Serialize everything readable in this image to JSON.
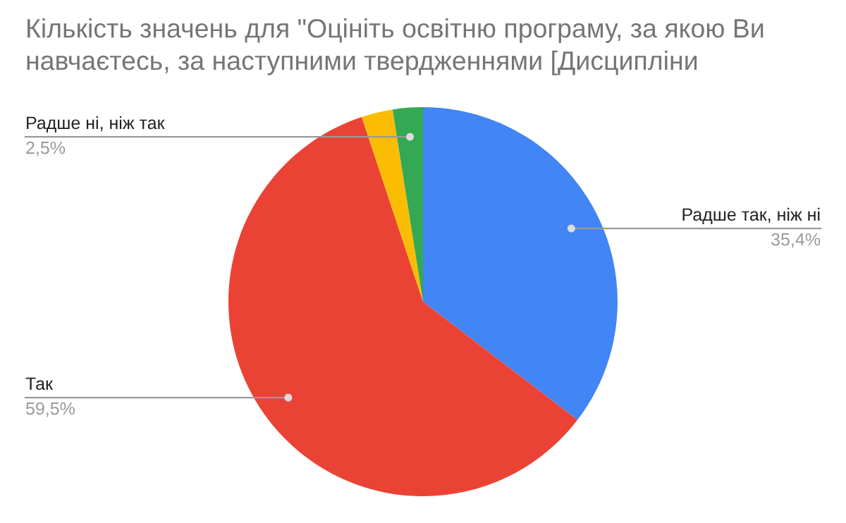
{
  "chart_data": {
    "type": "pie",
    "title": "Кількість значень для \"Оцініть освітню програму, за якою Ви\nнавчаєтесь, за наступними твердженнями [Дисципліни",
    "categories": [
      "Радше так, ніж ні",
      "Так",
      null,
      "Радше ні, ніж так"
    ],
    "values": [
      35.4,
      59.5,
      2.6,
      2.5
    ],
    "colors": [
      "#4285f4",
      "#ea4335",
      "#fbbc04",
      "#34a853"
    ],
    "value_labels": [
      "35,4%",
      "59,5%",
      null,
      "2,5%"
    ],
    "legend": false
  }
}
